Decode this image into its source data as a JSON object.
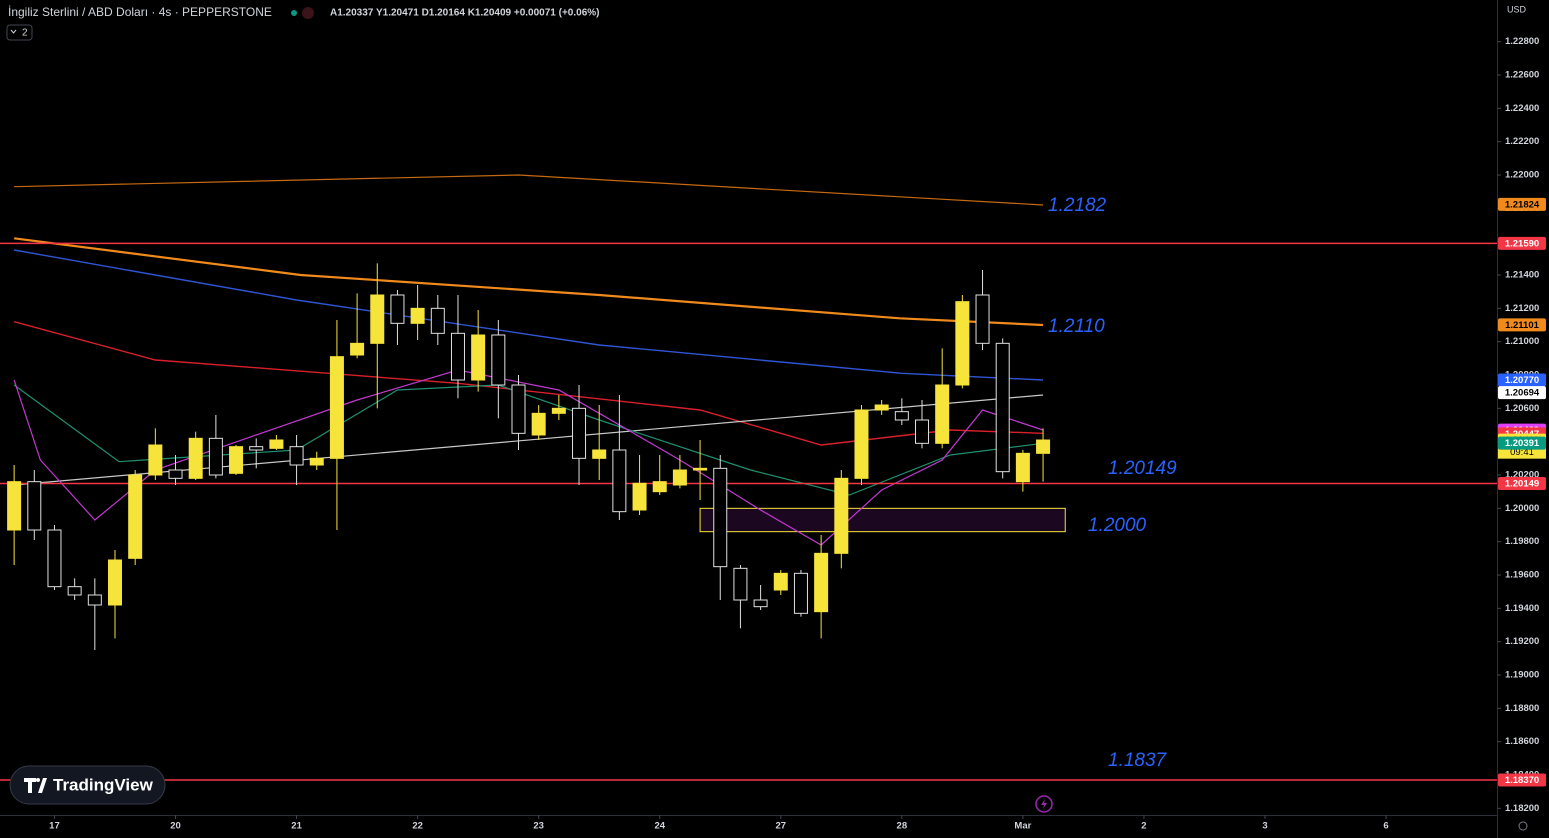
{
  "chart_data": {
    "type": "candlestick",
    "title": "İngiliz Sterlini / ABD Doları · 4s · PEPPERSTONE",
    "ohlc_info": "A1.20337 Y1.20471 D1.20164 K1.20409 +0.00071 (+0.06%)",
    "indicator_count": "2",
    "currency": "USD",
    "brand": "TradingView",
    "countdown": "09:41",
    "x": [
      0,
      1,
      2,
      3,
      4,
      5,
      6,
      7,
      8,
      9,
      10,
      11,
      12,
      13,
      14,
      15,
      16,
      17,
      18,
      19,
      20,
      21,
      22,
      23,
      24,
      25,
      26,
      27,
      28,
      29,
      30,
      31,
      32,
      33,
      34,
      35,
      36,
      37,
      38,
      39,
      40,
      41,
      42,
      43,
      44,
      45,
      46,
      47,
      48,
      49,
      50,
      51
    ],
    "open": [
      1.1987,
      1.2016,
      1.1987,
      1.1953,
      1.1948,
      1.1942,
      1.197,
      1.202,
      1.2023,
      1.2018,
      1.2042,
      1.2021,
      1.2037,
      1.2036,
      1.2037,
      1.2026,
      1.203,
      1.2092,
      1.2099,
      1.2128,
      1.2111,
      1.212,
      1.2105,
      1.2077,
      1.2104,
      1.2074,
      1.2044,
      1.2057,
      1.206,
      1.203,
      1.2035,
      1.1999,
      1.201,
      1.2014,
      1.2023,
      1.2024,
      1.1964,
      1.1945,
      1.1951,
      1.1961,
      1.1938,
      1.1973,
      1.2018,
      1.2059,
      1.2058,
      1.2053,
      1.2039,
      1.2074,
      1.2128,
      1.2099,
      1.2016,
      1.2033
    ],
    "high": [
      1.2026,
      1.2023,
      1.199,
      1.1958,
      1.1958,
      1.1975,
      1.2023,
      1.2048,
      1.2032,
      1.2046,
      1.2056,
      1.2038,
      1.2042,
      1.2044,
      1.2044,
      1.2034,
      1.2113,
      1.2129,
      1.2147,
      1.2131,
      1.2134,
      1.2128,
      1.2128,
      1.2119,
      1.2113,
      1.208,
      1.2062,
      1.2068,
      1.2074,
      1.2062,
      1.2068,
      1.2032,
      1.2032,
      1.2032,
      1.2041,
      1.2032,
      1.1966,
      1.1954,
      1.1963,
      1.1963,
      1.1984,
      1.2023,
      1.2062,
      1.2065,
      1.2066,
      1.2065,
      1.2096,
      1.2128,
      1.2143,
      1.2102,
      1.2035,
      1.2048
    ],
    "low": [
      1.1966,
      1.1981,
      1.1951,
      1.1945,
      1.1915,
      1.1922,
      1.1966,
      1.2017,
      1.2014,
      1.2017,
      1.2018,
      1.202,
      1.2024,
      1.2035,
      1.2014,
      1.2023,
      1.1987,
      1.209,
      1.206,
      1.2098,
      1.2101,
      1.2098,
      1.2066,
      1.207,
      1.2054,
      1.2035,
      1.2041,
      1.2053,
      1.2014,
      1.2017,
      1.1993,
      1.1996,
      1.2008,
      1.2012,
      1.2005,
      1.1945,
      1.1928,
      1.1939,
      1.1948,
      1.1935,
      1.1922,
      1.1964,
      1.2014,
      1.2056,
      1.205,
      1.2036,
      1.2036,
      1.2072,
      1.2095,
      1.2018,
      1.201,
      1.2016
    ],
    "close": [
      1.2016,
      1.1987,
      1.1953,
      1.1948,
      1.1942,
      1.1969,
      1.202,
      1.2038,
      1.2018,
      1.2042,
      1.202,
      1.2037,
      1.2035,
      1.2041,
      1.2026,
      1.203,
      1.2091,
      1.2099,
      1.2128,
      1.2111,
      1.212,
      1.2105,
      1.2077,
      1.2104,
      1.2074,
      1.2045,
      1.2057,
      1.206,
      1.203,
      1.2035,
      1.1998,
      1.2015,
      1.2016,
      1.2023,
      1.2024,
      1.1965,
      1.1945,
      1.1941,
      1.1961,
      1.1937,
      1.1973,
      1.2018,
      1.2059,
      1.2062,
      1.2053,
      1.2039,
      1.2074,
      1.2124,
      1.2099,
      1.2022,
      1.2033,
      1.2041
    ],
    "up_color": "#f7e43a",
    "down_color": "#000000",
    "down_border": "#e0e0e0",
    "xlim": [
      -0.7,
      73.5
    ],
    "ylim": [
      1.1816,
      1.2305
    ],
    "xticks": [
      {
        "value": 2,
        "label": "17"
      },
      {
        "value": 8,
        "label": "20"
      },
      {
        "value": 14,
        "label": "21"
      },
      {
        "value": 20,
        "label": "22"
      },
      {
        "value": 26,
        "label": "23"
      },
      {
        "value": 32,
        "label": "24"
      },
      {
        "value": 38,
        "label": "27"
      },
      {
        "value": 44,
        "label": "28"
      },
      {
        "value": 50,
        "label": "Mar"
      },
      {
        "value": 56,
        "label": "2"
      },
      {
        "value": 62,
        "label": "3"
      },
      {
        "value": 68,
        "label": "6"
      }
    ],
    "yticks": [
      {
        "value": 1.182,
        "label": "1.18200"
      },
      {
        "value": 1.184,
        "label": "1.18400"
      },
      {
        "value": 1.186,
        "label": "1.18600"
      },
      {
        "value": 1.188,
        "label": "1.18800"
      },
      {
        "value": 1.19,
        "label": "1.19000"
      },
      {
        "value": 1.192,
        "label": "1.19200"
      },
      {
        "value": 1.194,
        "label": "1.19400"
      },
      {
        "value": 1.196,
        "label": "1.19600"
      },
      {
        "value": 1.198,
        "label": "1.19800"
      },
      {
        "value": 1.2,
        "label": "1.20000"
      },
      {
        "value": 1.202,
        "label": "1.20200"
      },
      {
        "value": 1.204,
        "label": "1.20400"
      },
      {
        "value": 1.206,
        "label": "1.20600"
      },
      {
        "value": 1.208,
        "label": "1.20800"
      },
      {
        "value": 1.21,
        "label": "1.21000"
      },
      {
        "value": 1.212,
        "label": "1.21200"
      },
      {
        "value": 1.214,
        "label": "1.21400"
      },
      {
        "value": 1.216,
        "label": "1.21600"
      },
      {
        "value": 1.218,
        "label": "1.21800"
      },
      {
        "value": 1.22,
        "label": "1.22000"
      },
      {
        "value": 1.222,
        "label": "1.22200"
      },
      {
        "value": 1.224,
        "label": "1.22400"
      },
      {
        "value": 1.226,
        "label": "1.22600"
      },
      {
        "value": 1.228,
        "label": "1.22800"
      }
    ],
    "lines": [
      {
        "color": "#c56a12",
        "width": 1.2,
        "x": [
          0,
          25,
          51
        ],
        "values": [
          1.2193,
          1.22,
          1.2182
        ]
      },
      {
        "color": "#f08a1c",
        "width": 2.2,
        "x": [
          0,
          14.2,
          29,
          43.9,
          51
        ],
        "values": [
          1.2162,
          1.214,
          1.2128,
          1.2114,
          1.211
        ]
      },
      {
        "color": "#2f55d4",
        "width": 1.4,
        "x": [
          0,
          14,
          29,
          44,
          51
        ],
        "values": [
          1.2155,
          1.2125,
          1.2098,
          1.2081,
          1.2077
        ]
      },
      {
        "color": "#d8202a",
        "width": 1.4,
        "x": [
          0,
          7,
          22,
          34,
          40,
          46.4,
          51
        ],
        "values": [
          1.2112,
          1.2089,
          1.2075,
          1.2059,
          1.2038,
          1.2047,
          1.2045
        ]
      },
      {
        "color": "#c8c8c8",
        "width": 1.2,
        "x": [
          0,
          51
        ],
        "values": [
          1.2014,
          1.2068
        ]
      },
      {
        "color": "#1f8f70",
        "width": 1.2,
        "x": [
          0,
          5.2,
          14,
          19,
          24,
          29,
          36.5,
          41.4,
          46.4,
          51
        ],
        "values": [
          1.2074,
          1.2028,
          1.2035,
          1.2071,
          1.2074,
          1.2053,
          1.2023,
          1.2008,
          1.2032,
          1.2039
        ]
      },
      {
        "color": "#c13ad0",
        "width": 1.2,
        "x": [
          0,
          1.3,
          4,
          7,
          17,
          22,
          27,
          33,
          37,
          40,
          43,
          46,
          48,
          51
        ],
        "values": [
          1.2077,
          1.2029,
          1.1993,
          1.2023,
          1.2065,
          1.2083,
          1.2071,
          1.2029,
          1.1999,
          1.1978,
          1.2011,
          1.2029,
          1.2059,
          1.2047
        ]
      }
    ],
    "levels": [
      {
        "value": 1.2159,
        "label": "1.21590",
        "color": "#f23645"
      },
      {
        "value": 1.20149,
        "color": "#f23645"
      },
      {
        "value": 1.1837,
        "label": "1.18370",
        "color": "#f23645"
      }
    ],
    "zone": {
      "x": [
        34,
        52.1
      ],
      "y": [
        1.2,
        1.1986
      ],
      "color": "#f7e43a"
    },
    "price_labels": [
      {
        "value": 1.21824,
        "color": "#f08a1c",
        "text_color": "#000000"
      },
      {
        "value": 1.21101,
        "color": "#f08a1c",
        "text_color": "#000000"
      },
      {
        "value": 1.2077,
        "label": "1.20770",
        "color": "#2962ff",
        "text_color": "#ffffff"
      },
      {
        "value": 1.20694,
        "color": "#ffffff",
        "text_color": "#000000"
      },
      {
        "value": 1.20469,
        "color": "#e040fb",
        "text_color": "#ffffff"
      },
      {
        "value": 1.20447,
        "color": "#f23645",
        "text_color": "#ffffff"
      },
      {
        "value": 1.20409,
        "color": "#f7e43a",
        "text_color": "#000000"
      },
      {
        "value": 1.20391,
        "color": "#089981",
        "text_color": "#ffffff"
      }
    ],
    "annotations": [
      "1.2182",
      "1.2110",
      "1.20149",
      "1.2000",
      "1.1837"
    ]
  }
}
